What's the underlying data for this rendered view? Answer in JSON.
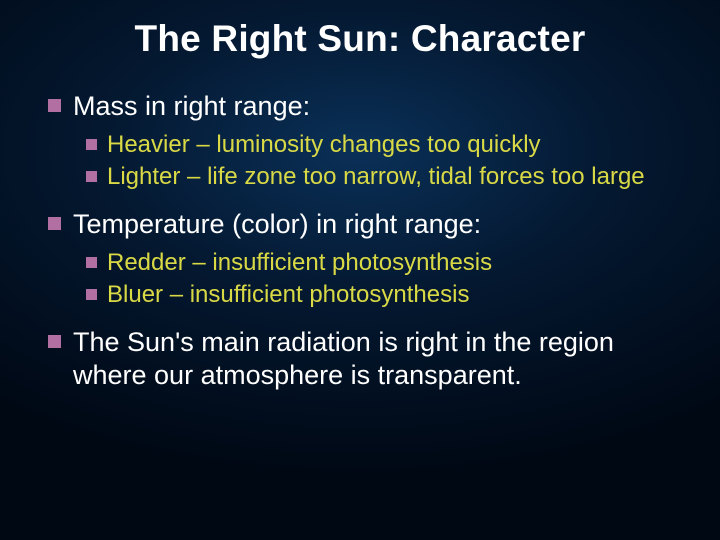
{
  "colors": {
    "bullet": "#b26fa1",
    "top_text": "#ffffff",
    "sub_text": "#d9d946",
    "title_color": "#ffffff",
    "bg_center": "#0a3058",
    "bg_mid": "#041830",
    "bg_edge": "#000814"
  },
  "typography": {
    "title_fontsize": 37,
    "top_fontsize": 27,
    "sub_fontsize": 24,
    "font_family": "Arial"
  },
  "title": "The Right Sun:  Character",
  "items": [
    {
      "text": "Mass in right range:",
      "sub": [
        "Heavier – luminosity changes too quickly",
        "Lighter – life zone too narrow, tidal forces too large"
      ]
    },
    {
      "text": "Temperature (color) in right range:",
      "sub": [
        "Redder – insufficient photosynthesis",
        "Bluer – insufficient photosynthesis"
      ]
    },
    {
      "text": "The Sun's main radiation is right in the region where our atmosphere is transparent.",
      "sub": []
    }
  ]
}
